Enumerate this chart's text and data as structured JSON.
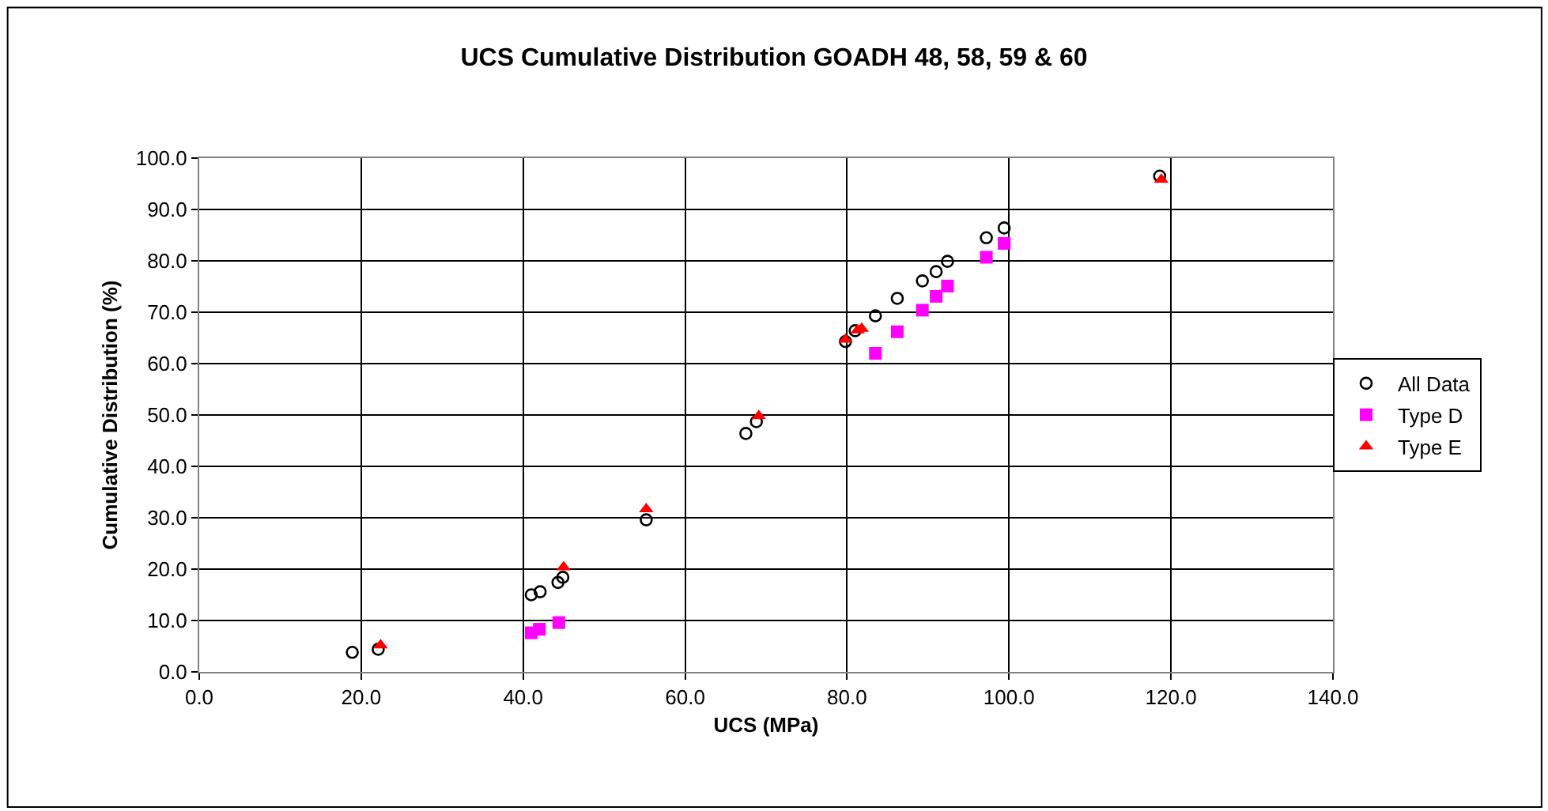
{
  "chart_data": {
    "type": "scatter",
    "title": "UCS Cumulative Distribution GOADH 48, 58, 59 & 60",
    "xlabel": "UCS (MPa)",
    "ylabel": "Cumulative Distribution (%)",
    "series": [
      {
        "name": "All Data",
        "color": "#000000",
        "marker": "circle",
        "x": [
          18.9,
          22.1,
          41.0,
          42.1,
          44.3,
          44.9,
          55.2,
          67.5,
          68.8,
          79.8,
          81.0,
          83.5,
          86.2,
          89.3,
          91.0,
          92.4,
          97.2,
          99.4,
          118.6
        ],
        "values": [
          3.8,
          4.4,
          15.0,
          15.6,
          17.4,
          18.4,
          29.6,
          46.4,
          48.7,
          64.3,
          66.4,
          69.3,
          72.7,
          76.1,
          77.9,
          79.9,
          84.5,
          86.4,
          96.5
        ]
      },
      {
        "name": "Type D",
        "color": "#ff00ff",
        "marker": "square",
        "x": [
          41.0,
          42.0,
          44.4,
          83.5,
          86.2,
          89.3,
          91.0,
          92.4,
          97.2,
          99.4
        ],
        "values": [
          7.6,
          8.3,
          9.6,
          62.0,
          66.2,
          70.4,
          73.1,
          75.1,
          80.7,
          83.4
        ]
      },
      {
        "name": "Type E",
        "color": "#ff0000",
        "marker": "triangle",
        "x": [
          22.4,
          45.0,
          55.2,
          69.1,
          79.8,
          81.3,
          81.8,
          118.8
        ],
        "values": [
          5.2,
          20.4,
          31.7,
          49.8,
          64.7,
          66.5,
          66.8,
          95.8
        ]
      }
    ],
    "xlim": [
      0,
      140
    ],
    "xticks": [
      {
        "value": 0,
        "label": "0.0"
      },
      {
        "value": 20,
        "label": "20.0"
      },
      {
        "value": 40,
        "label": "40.0"
      },
      {
        "value": 60,
        "label": "60.0"
      },
      {
        "value": 80,
        "label": "80.0"
      },
      {
        "value": 100,
        "label": "100.0"
      },
      {
        "value": 120,
        "label": "120.0"
      },
      {
        "value": 140,
        "label": "140.0"
      }
    ],
    "ylim": [
      0,
      100
    ],
    "yticks": [
      {
        "value": 0,
        "label": "0.0"
      },
      {
        "value": 10,
        "label": "10.0"
      },
      {
        "value": 20,
        "label": "20.0"
      },
      {
        "value": 30,
        "label": "30.0"
      },
      {
        "value": 40,
        "label": "40.0"
      },
      {
        "value": 50,
        "label": "50.0"
      },
      {
        "value": 60,
        "label": "60.0"
      },
      {
        "value": 70,
        "label": "70.0"
      },
      {
        "value": 80,
        "label": "80.0"
      },
      {
        "value": 90,
        "label": "90.0"
      },
      {
        "value": 100,
        "label": "100.0"
      }
    ],
    "grid": true,
    "legend": "right"
  }
}
